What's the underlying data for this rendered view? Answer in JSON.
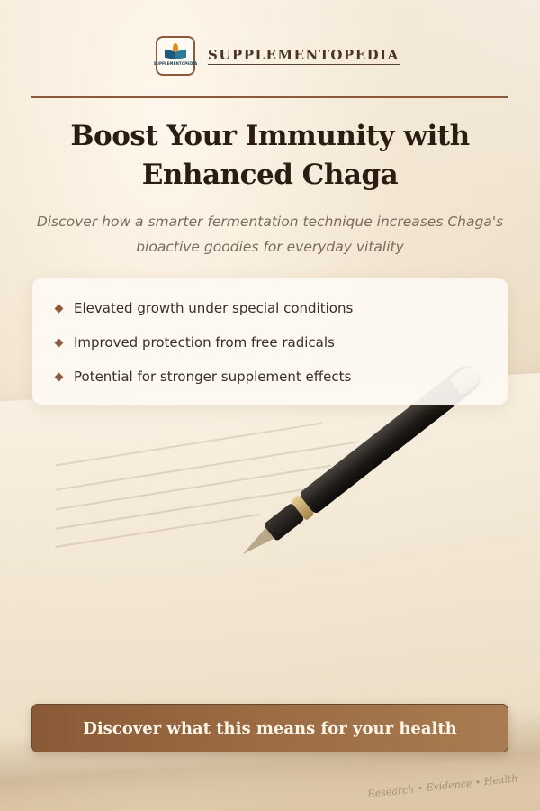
{
  "brand": {
    "logo_text": "SUPPLEMENTOPEDIA",
    "name": "SUPPLEMENTOPEDIA"
  },
  "headline": {
    "line1": "Boost Your Immunity with",
    "line2": "Enhanced Chaga"
  },
  "subhead": "Discover how a smarter fermentation technique increases Chaga's bioactive goodies for everyday vitality",
  "benefits": [
    "Elevated growth under special conditions",
    "Improved protection from free radicals",
    "Potential for stronger supplement effects"
  ],
  "cta": {
    "label": "Discover what this means for your health"
  },
  "footer": {
    "tagline": "Research • Evidence • Health"
  },
  "colors": {
    "accent": "#8a5a3a",
    "heading": "#2a1d12",
    "subtext": "#7a6a5c",
    "cta_bg": "#9c6c44"
  },
  "icons": {
    "logo": "book-with-flame-icon",
    "bullet": "diamond-bullet-icon"
  }
}
